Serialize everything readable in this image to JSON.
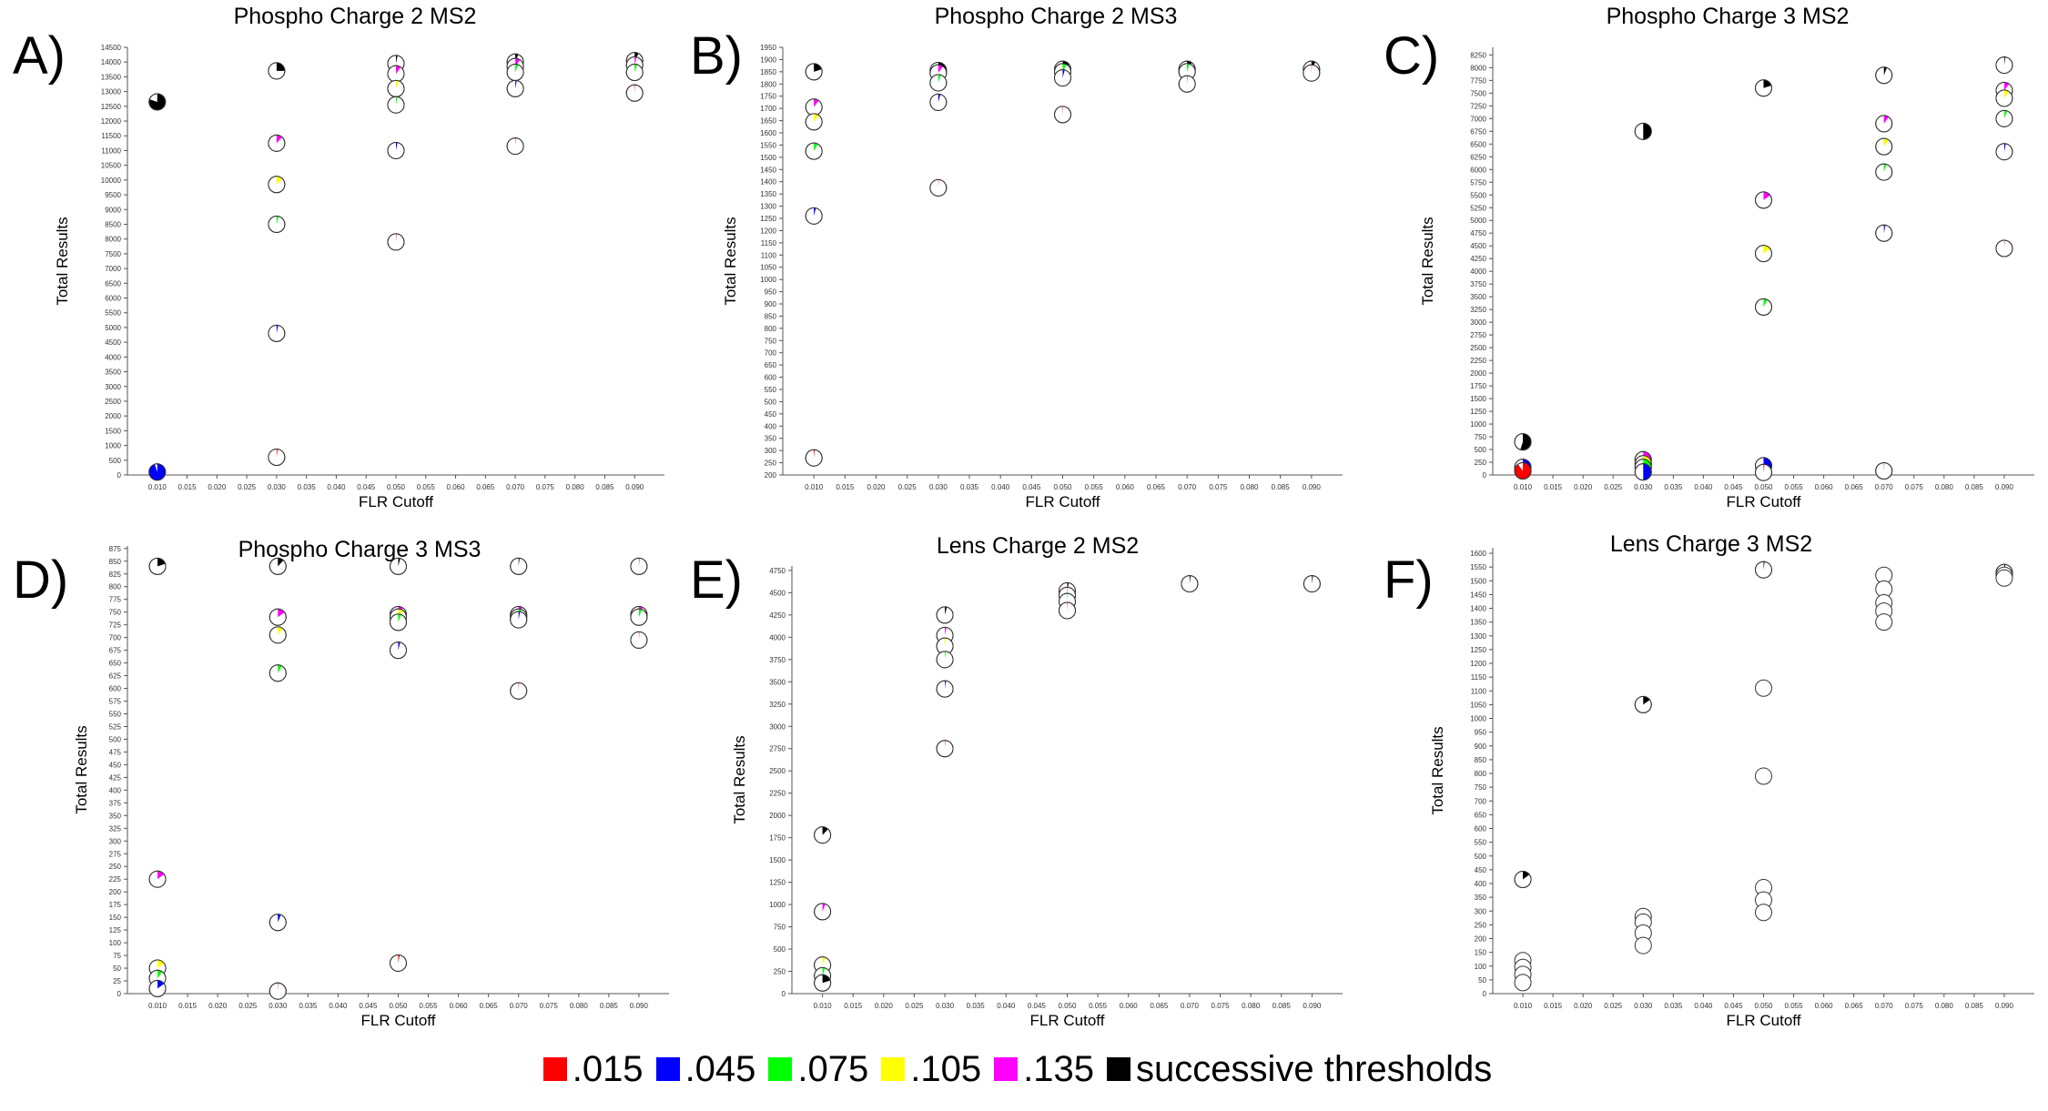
{
  "legend": {
    "items": [
      {
        "label": ".015",
        "color": "#ff0000"
      },
      {
        "label": ".045",
        "color": "#0000ff"
      },
      {
        "label": ".075",
        "color": "#00ff00"
      },
      {
        "label": ".105",
        "color": "#ffff00"
      },
      {
        "label": ".135",
        "color": "#ff00ff"
      },
      {
        "label": "successive thresholds",
        "color": "#000000"
      }
    ]
  },
  "chart_data": [
    {
      "type": "scatter",
      "panel_letter": "A)",
      "title": "Phospho Charge 2 MS2",
      "xlabel": "FLR Cutoff",
      "ylabel": "Total Results",
      "xlim": [
        0.005,
        0.095
      ],
      "ylim": [
        0,
        14500
      ],
      "ytick_step": 500,
      "xticks": [
        "0.010",
        "0.015",
        "0.020",
        "0.025",
        "0.030",
        "0.035",
        "0.040",
        "0.045",
        "0.050",
        "0.055",
        "0.060",
        "0.065",
        "0.070",
        "0.075",
        "0.080",
        "0.085",
        "0.090"
      ],
      "points": [
        {
          "x": 0.01,
          "y": 12650,
          "fill": "#000000",
          "frac": 0.8
        },
        {
          "x": 0.01,
          "y": 100,
          "fill": "#0000ff",
          "frac": 0.95
        },
        {
          "x": 0.03,
          "y": 13700,
          "fill": "#000000",
          "frac": 0.25
        },
        {
          "x": 0.03,
          "y": 11250,
          "fill": "#ff00ff",
          "frac": 0.12
        },
        {
          "x": 0.03,
          "y": 9850,
          "fill": "#ffff00",
          "frac": 0.12
        },
        {
          "x": 0.03,
          "y": 8500,
          "fill": "#00ff00",
          "frac": 0.04
        },
        {
          "x": 0.03,
          "y": 4800,
          "fill": "#0000ff",
          "frac": 0.03
        },
        {
          "x": 0.03,
          "y": 600,
          "fill": "#ff0000",
          "frac": 0.02
        },
        {
          "x": 0.05,
          "y": 13950,
          "fill": "#000000",
          "frac": 0.03
        },
        {
          "x": 0.05,
          "y": 13600,
          "fill": "#ff00ff",
          "frac": 0.1
        },
        {
          "x": 0.05,
          "y": 13100,
          "fill": "#ffff00",
          "frac": 0.06
        },
        {
          "x": 0.05,
          "y": 12550,
          "fill": "#00ff00",
          "frac": 0.03
        },
        {
          "x": 0.05,
          "y": 11000,
          "fill": "#0000ff",
          "frac": 0.03
        },
        {
          "x": 0.05,
          "y": 7900,
          "fill": "#ff0000",
          "frac": 0.01
        },
        {
          "x": 0.07,
          "y": 14000,
          "fill": "#000000",
          "frac": 0.06
        },
        {
          "x": 0.07,
          "y": 13850,
          "fill": "#ff00ff",
          "frac": 0.1
        },
        {
          "x": 0.07,
          "y": 13650,
          "fill": "#00ff00",
          "frac": 0.06
        },
        {
          "x": 0.07,
          "y": 13100,
          "fill": "#0000ff",
          "frac": 0.03
        },
        {
          "x": 0.07,
          "y": 11150,
          "fill": "#ff0000",
          "frac": 0.01
        },
        {
          "x": 0.09,
          "y": 14050,
          "fill": "#000000",
          "frac": 0.08
        },
        {
          "x": 0.09,
          "y": 13900,
          "fill": "#ff00ff",
          "frac": 0.04
        },
        {
          "x": 0.09,
          "y": 13650,
          "fill": "#00ff00",
          "frac": 0.05
        },
        {
          "x": 0.09,
          "y": 12950,
          "fill": "#ff0000",
          "frac": 0.01
        }
      ]
    },
    {
      "type": "scatter",
      "panel_letter": "B)",
      "title": "Phospho Charge 2 MS3",
      "xlabel": "FLR Cutoff",
      "ylabel": "Total Results",
      "xlim": [
        0.005,
        0.095
      ],
      "ylim": [
        200,
        1950
      ],
      "ytick_step": 50,
      "xticks": [
        "0.010",
        "0.015",
        "0.020",
        "0.025",
        "0.030",
        "0.035",
        "0.040",
        "0.045",
        "0.050",
        "0.055",
        "0.060",
        "0.065",
        "0.070",
        "0.075",
        "0.080",
        "0.085",
        "0.090"
      ],
      "points": [
        {
          "x": 0.01,
          "y": 1850,
          "fill": "#000000",
          "frac": 0.2
        },
        {
          "x": 0.01,
          "y": 1705,
          "fill": "#ff00ff",
          "frac": 0.1
        },
        {
          "x": 0.01,
          "y": 1645,
          "fill": "#ffff00",
          "frac": 0.1
        },
        {
          "x": 0.01,
          "y": 1525,
          "fill": "#00ff00",
          "frac": 0.08
        },
        {
          "x": 0.01,
          "y": 1260,
          "fill": "#0000ff",
          "frac": 0.04
        },
        {
          "x": 0.01,
          "y": 270,
          "fill": "#ff0000",
          "frac": 0.02
        },
        {
          "x": 0.03,
          "y": 1855,
          "fill": "#000000",
          "frac": 0.3
        },
        {
          "x": 0.03,
          "y": 1845,
          "fill": "#ff00ff",
          "frac": 0.1
        },
        {
          "x": 0.03,
          "y": 1805,
          "fill": "#00ff00",
          "frac": 0.05
        },
        {
          "x": 0.03,
          "y": 1725,
          "fill": "#0000ff",
          "frac": 0.04
        },
        {
          "x": 0.03,
          "y": 1375,
          "fill": "#ff0000",
          "frac": 0.01
        },
        {
          "x": 0.05,
          "y": 1860,
          "fill": "#000000",
          "frac": 0.15
        },
        {
          "x": 0.05,
          "y": 1850,
          "fill": "#00ff00",
          "frac": 0.08
        },
        {
          "x": 0.05,
          "y": 1825,
          "fill": "#0000ff",
          "frac": 0.04
        },
        {
          "x": 0.05,
          "y": 1675,
          "fill": "#ff0000",
          "frac": 0.01
        },
        {
          "x": 0.07,
          "y": 1860,
          "fill": "#000000",
          "frac": 0.1
        },
        {
          "x": 0.07,
          "y": 1850,
          "fill": "#00ff00",
          "frac": 0.05
        },
        {
          "x": 0.07,
          "y": 1800,
          "fill": "#ff0000",
          "frac": 0.01
        },
        {
          "x": 0.09,
          "y": 1860,
          "fill": "#000000",
          "frac": 0.08
        },
        {
          "x": 0.09,
          "y": 1845,
          "fill": "#ff0000",
          "frac": 0.01
        }
      ]
    },
    {
      "type": "scatter",
      "panel_letter": "C)",
      "title": "Phospho Charge 3 MS2",
      "xlabel": "FLR Cutoff",
      "ylabel": "Total Results",
      "xlim": [
        0.005,
        0.095
      ],
      "ylim": [
        0,
        8400
      ],
      "ytick_step": 250,
      "xticks": [
        "0.010",
        "0.015",
        "0.020",
        "0.025",
        "0.030",
        "0.035",
        "0.040",
        "0.045",
        "0.050",
        "0.055",
        "0.060",
        "0.065",
        "0.070",
        "0.075",
        "0.080",
        "0.085",
        "0.090"
      ],
      "points": [
        {
          "x": 0.01,
          "y": 650,
          "fill": "#000000",
          "frac": 0.55
        },
        {
          "x": 0.01,
          "y": 150,
          "fill": "#0000ff",
          "frac": 0.6
        },
        {
          "x": 0.01,
          "y": 80,
          "fill": "#ff0000",
          "frac": 0.9
        },
        {
          "x": 0.03,
          "y": 6750,
          "fill": "#000000",
          "frac": 0.5
        },
        {
          "x": 0.03,
          "y": 300,
          "fill": "#ff00ff",
          "frac": 0.7
        },
        {
          "x": 0.03,
          "y": 220,
          "fill": "#ffff00",
          "frac": 0.6
        },
        {
          "x": 0.03,
          "y": 150,
          "fill": "#00ff00",
          "frac": 0.6
        },
        {
          "x": 0.03,
          "y": 60,
          "fill": "#0000ff",
          "frac": 0.5
        },
        {
          "x": 0.05,
          "y": 7600,
          "fill": "#000000",
          "frac": 0.2
        },
        {
          "x": 0.05,
          "y": 5400,
          "fill": "#ff00ff",
          "frac": 0.15
        },
        {
          "x": 0.05,
          "y": 4350,
          "fill": "#ffff00",
          "frac": 0.15
        },
        {
          "x": 0.05,
          "y": 3300,
          "fill": "#00ff00",
          "frac": 0.08
        },
        {
          "x": 0.05,
          "y": 180,
          "fill": "#0000ff",
          "frac": 0.6
        },
        {
          "x": 0.05,
          "y": 50,
          "fill": "#ff0000",
          "frac": 0.02
        },
        {
          "x": 0.07,
          "y": 7850,
          "fill": "#000000",
          "frac": 0.06
        },
        {
          "x": 0.07,
          "y": 6900,
          "fill": "#ff00ff",
          "frac": 0.1
        },
        {
          "x": 0.07,
          "y": 6450,
          "fill": "#ffff00",
          "frac": 0.1
        },
        {
          "x": 0.07,
          "y": 5950,
          "fill": "#00ff00",
          "frac": 0.05
        },
        {
          "x": 0.07,
          "y": 4750,
          "fill": "#0000ff",
          "frac": 0.03
        },
        {
          "x": 0.07,
          "y": 80,
          "fill": "#ff0000",
          "frac": 0.01
        },
        {
          "x": 0.09,
          "y": 8050,
          "fill": "#000000",
          "frac": 0.02
        },
        {
          "x": 0.09,
          "y": 7550,
          "fill": "#ff00ff",
          "frac": 0.1
        },
        {
          "x": 0.09,
          "y": 7400,
          "fill": "#ffff00",
          "frac": 0.1
        },
        {
          "x": 0.09,
          "y": 7000,
          "fill": "#00ff00",
          "frac": 0.06
        },
        {
          "x": 0.09,
          "y": 6350,
          "fill": "#0000ff",
          "frac": 0.03
        },
        {
          "x": 0.09,
          "y": 4450,
          "fill": "#ff0000",
          "frac": 0.01
        }
      ]
    },
    {
      "type": "scatter",
      "panel_letter": "D)",
      "title": "Phospho Charge 3 MS3",
      "xlabel": "FLR Cutoff",
      "ylabel": "Total Results",
      "xlim": [
        0.005,
        0.095
      ],
      "ylim": [
        0,
        880
      ],
      "ytick_step": 25,
      "xticks": [
        "0.010",
        "0.015",
        "0.020",
        "0.025",
        "0.030",
        "0.035",
        "0.040",
        "0.045",
        "0.050",
        "0.055",
        "0.060",
        "0.065",
        "0.070",
        "0.075",
        "0.080",
        "0.085",
        "0.090"
      ],
      "points": [
        {
          "x": 0.01,
          "y": 840,
          "fill": "#000000",
          "frac": 0.2
        },
        {
          "x": 0.01,
          "y": 225,
          "fill": "#ff00ff",
          "frac": 0.15
        },
        {
          "x": 0.01,
          "y": 50,
          "fill": "#ffff00",
          "frac": 0.15
        },
        {
          "x": 0.01,
          "y": 30,
          "fill": "#00ff00",
          "frac": 0.1
        },
        {
          "x": 0.01,
          "y": 10,
          "fill": "#0000ff",
          "frac": 0.15
        },
        {
          "x": 0.03,
          "y": 840,
          "fill": "#000000",
          "frac": 0.12
        },
        {
          "x": 0.03,
          "y": 740,
          "fill": "#ff00ff",
          "frac": 0.15
        },
        {
          "x": 0.03,
          "y": 705,
          "fill": "#ffff00",
          "frac": 0.1
        },
        {
          "x": 0.03,
          "y": 630,
          "fill": "#00ff00",
          "frac": 0.08
        },
        {
          "x": 0.03,
          "y": 140,
          "fill": "#0000ff",
          "frac": 0.06
        },
        {
          "x": 0.03,
          "y": 5,
          "fill": "#ff0000",
          "frac": 0.01
        },
        {
          "x": 0.05,
          "y": 840,
          "fill": "#000000",
          "frac": 0.04
        },
        {
          "x": 0.05,
          "y": 745,
          "fill": "#ff00ff",
          "frac": 0.1
        },
        {
          "x": 0.05,
          "y": 740,
          "fill": "#ffff00",
          "frac": 0.1
        },
        {
          "x": 0.05,
          "y": 730,
          "fill": "#00ff00",
          "frac": 0.06
        },
        {
          "x": 0.05,
          "y": 675,
          "fill": "#0000ff",
          "frac": 0.04
        },
        {
          "x": 0.05,
          "y": 60,
          "fill": "#ff0000",
          "frac": 0.03
        },
        {
          "x": 0.07,
          "y": 840,
          "fill": "#000000",
          "frac": 0.02
        },
        {
          "x": 0.07,
          "y": 745,
          "fill": "#ff00ff",
          "frac": 0.08
        },
        {
          "x": 0.07,
          "y": 740,
          "fill": "#00ff00",
          "frac": 0.06
        },
        {
          "x": 0.07,
          "y": 735,
          "fill": "#0000ff",
          "frac": 0.03
        },
        {
          "x": 0.07,
          "y": 595,
          "fill": "#ff0000",
          "frac": 0.01
        },
        {
          "x": 0.09,
          "y": 840,
          "fill": "#000000",
          "frac": 0.01
        },
        {
          "x": 0.09,
          "y": 745,
          "fill": "#ff00ff",
          "frac": 0.08
        },
        {
          "x": 0.09,
          "y": 740,
          "fill": "#00ff00",
          "frac": 0.06
        },
        {
          "x": 0.09,
          "y": 695,
          "fill": "#ff0000",
          "frac": 0.01
        }
      ]
    },
    {
      "type": "scatter",
      "panel_letter": "E)",
      "title": "Lens Charge 2 MS2",
      "xlabel": "FLR Cutoff",
      "ylabel": "Total Results",
      "xlim": [
        0.005,
        0.095
      ],
      "ylim": [
        0,
        4800
      ],
      "ytick_step": 250,
      "xticks": [
        "0.010",
        "0.015",
        "0.020",
        "0.025",
        "0.030",
        "0.035",
        "0.040",
        "0.045",
        "0.050",
        "0.055",
        "0.060",
        "0.065",
        "0.070",
        "0.075",
        "0.080",
        "0.085",
        "0.090"
      ],
      "points": [
        {
          "x": 0.01,
          "y": 1780,
          "fill": "#000000",
          "frac": 0.12
        },
        {
          "x": 0.01,
          "y": 920,
          "fill": "#ff00ff",
          "frac": 0.06
        },
        {
          "x": 0.01,
          "y": 320,
          "fill": "#ffff00",
          "frac": 0.06
        },
        {
          "x": 0.01,
          "y": 200,
          "fill": "#00ff00",
          "frac": 0.05
        },
        {
          "x": 0.01,
          "y": 120,
          "fill": "#000000",
          "frac": 0.2
        },
        {
          "x": 0.03,
          "y": 4250,
          "fill": "#000000",
          "frac": 0.04
        },
        {
          "x": 0.03,
          "y": 4020,
          "fill": "#ff00ff",
          "frac": 0.03
        },
        {
          "x": 0.03,
          "y": 3900,
          "fill": "#ffff00",
          "frac": 0.03
        },
        {
          "x": 0.03,
          "y": 3750,
          "fill": "#00ff00",
          "frac": 0.02
        },
        {
          "x": 0.03,
          "y": 3420,
          "fill": "#0000ff",
          "frac": 0.02
        },
        {
          "x": 0.03,
          "y": 2750,
          "fill": "#ff0000",
          "frac": 0.01
        },
        {
          "x": 0.05,
          "y": 4520,
          "fill": "#000000",
          "frac": 0.03
        },
        {
          "x": 0.05,
          "y": 4470,
          "fill": "#ff00ff",
          "frac": 0.01
        },
        {
          "x": 0.05,
          "y": 4400,
          "fill": "#00ff00",
          "frac": 0.01
        },
        {
          "x": 0.05,
          "y": 4300,
          "fill": "#ff0000",
          "frac": 0.01
        },
        {
          "x": 0.07,
          "y": 4600,
          "fill": "#000000",
          "frac": 0.02
        },
        {
          "x": 0.09,
          "y": 4600,
          "fill": "#000000",
          "frac": 0.02
        }
      ]
    },
    {
      "type": "scatter",
      "panel_letter": "F)",
      "title": "Lens Charge 3 MS2",
      "xlabel": "FLR Cutoff",
      "ylabel": "Total Results",
      "xlim": [
        0.005,
        0.095
      ],
      "ylim": [
        0,
        1620
      ],
      "ytick_step": 50,
      "xticks": [
        "0.010",
        "0.015",
        "0.020",
        "0.025",
        "0.030",
        "0.035",
        "0.040",
        "0.045",
        "0.050",
        "0.055",
        "0.060",
        "0.065",
        "0.070",
        "0.075",
        "0.080",
        "0.085",
        "0.090"
      ],
      "points": [
        {
          "x": 0.01,
          "y": 415,
          "fill": "#000000",
          "frac": 0.15
        },
        {
          "x": 0.01,
          "y": 120,
          "fill": "#ff00ff",
          "frac": 0.0
        },
        {
          "x": 0.01,
          "y": 95,
          "fill": "#ffff00",
          "frac": 0.0
        },
        {
          "x": 0.01,
          "y": 70,
          "fill": "#00ff00",
          "frac": 0.0
        },
        {
          "x": 0.01,
          "y": 40,
          "fill": "#0000ff",
          "frac": 0.0
        },
        {
          "x": 0.03,
          "y": 1050,
          "fill": "#000000",
          "frac": 0.15
        },
        {
          "x": 0.03,
          "y": 280,
          "fill": "#ff00ff",
          "frac": 0.0
        },
        {
          "x": 0.03,
          "y": 260,
          "fill": "#ffff00",
          "frac": 0.0
        },
        {
          "x": 0.03,
          "y": 220,
          "fill": "#00ff00",
          "frac": 0.0
        },
        {
          "x": 0.03,
          "y": 175,
          "fill": "#0000ff",
          "frac": 0.0
        },
        {
          "x": 0.05,
          "y": 1540,
          "fill": "#000000",
          "frac": 0.02
        },
        {
          "x": 0.05,
          "y": 1110,
          "fill": "#ff00ff",
          "frac": 0.0
        },
        {
          "x": 0.05,
          "y": 790,
          "fill": "#ffff00",
          "frac": 0.0
        },
        {
          "x": 0.05,
          "y": 385,
          "fill": "#00ff00",
          "frac": 0.0
        },
        {
          "x": 0.05,
          "y": 340,
          "fill": "#0000ff",
          "frac": 0.0
        },
        {
          "x": 0.05,
          "y": 295,
          "fill": "#ff0000",
          "frac": 0.0
        },
        {
          "x": 0.07,
          "y": 1520,
          "fill": "#000000",
          "frac": 0.0
        },
        {
          "x": 0.07,
          "y": 1470,
          "fill": "#ff00ff",
          "frac": 0.0
        },
        {
          "x": 0.07,
          "y": 1420,
          "fill": "#ffff00",
          "frac": 0.0
        },
        {
          "x": 0.07,
          "y": 1390,
          "fill": "#00ff00",
          "frac": 0.0
        },
        {
          "x": 0.07,
          "y": 1350,
          "fill": "#0000ff",
          "frac": 0.0
        },
        {
          "x": 0.09,
          "y": 1530,
          "fill": "#000000",
          "frac": 0.02
        },
        {
          "x": 0.09,
          "y": 1520,
          "fill": "#ff00ff",
          "frac": 0.0
        },
        {
          "x": 0.09,
          "y": 1510,
          "fill": "#00ff00",
          "frac": 0.0
        }
      ]
    }
  ]
}
